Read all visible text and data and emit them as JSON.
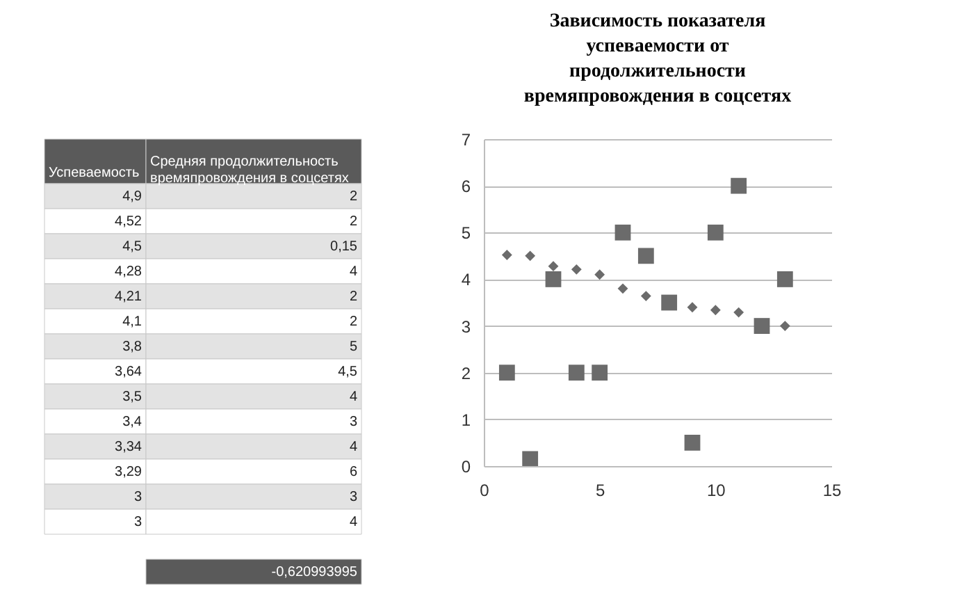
{
  "chart_data": [
    {
      "type": "other",
      "categories": [
        "Успеваемость",
        "Средняя продолжительность времяпровождения в соцсетях"
      ],
      "annotations": [
        "4,9",
        "2",
        "4,52",
        "2",
        "4,5",
        "0,15",
        "4,28",
        "4",
        "4,21",
        "2",
        "4,1",
        "2",
        "3,8",
        "5",
        "3,64",
        "4,5",
        "3,5",
        "4",
        "3,4",
        "3",
        "3,34",
        "4",
        "3,29",
        "6",
        "3",
        "3",
        "3",
        "4",
        "-0,620993995"
      ]
    },
    {
      "type": "scatter",
      "title": "Зависимость показателя успеваемости от продолжительности времяпровождения в соцсетях",
      "x": [
        1,
        2,
        3,
        4,
        5,
        6,
        7,
        8,
        9,
        10,
        11,
        12,
        13
      ],
      "series": [
        {
          "color": "#6b6b6b",
          "marker": "diamond",
          "values": [
            4.52,
            4.5,
            4.28,
            4.21,
            4.1,
            3.8,
            3.64,
            null,
            3.4,
            3.34,
            3.29,
            null,
            3
          ]
        },
        {
          "color": "#6b6b6b",
          "marker": "square",
          "values": [
            2,
            0.15,
            4,
            2,
            2,
            5,
            4.5,
            3.5,
            0.5,
            5,
            6,
            3,
            4
          ]
        }
      ],
      "xlim": [
        0,
        15
      ],
      "xticks": [
        0,
        5,
        10,
        15
      ],
      "ylim": [
        0,
        7
      ],
      "yticks": [
        0,
        1,
        2,
        3,
        4,
        5,
        6,
        7
      ],
      "grid": "y"
    }
  ]
}
